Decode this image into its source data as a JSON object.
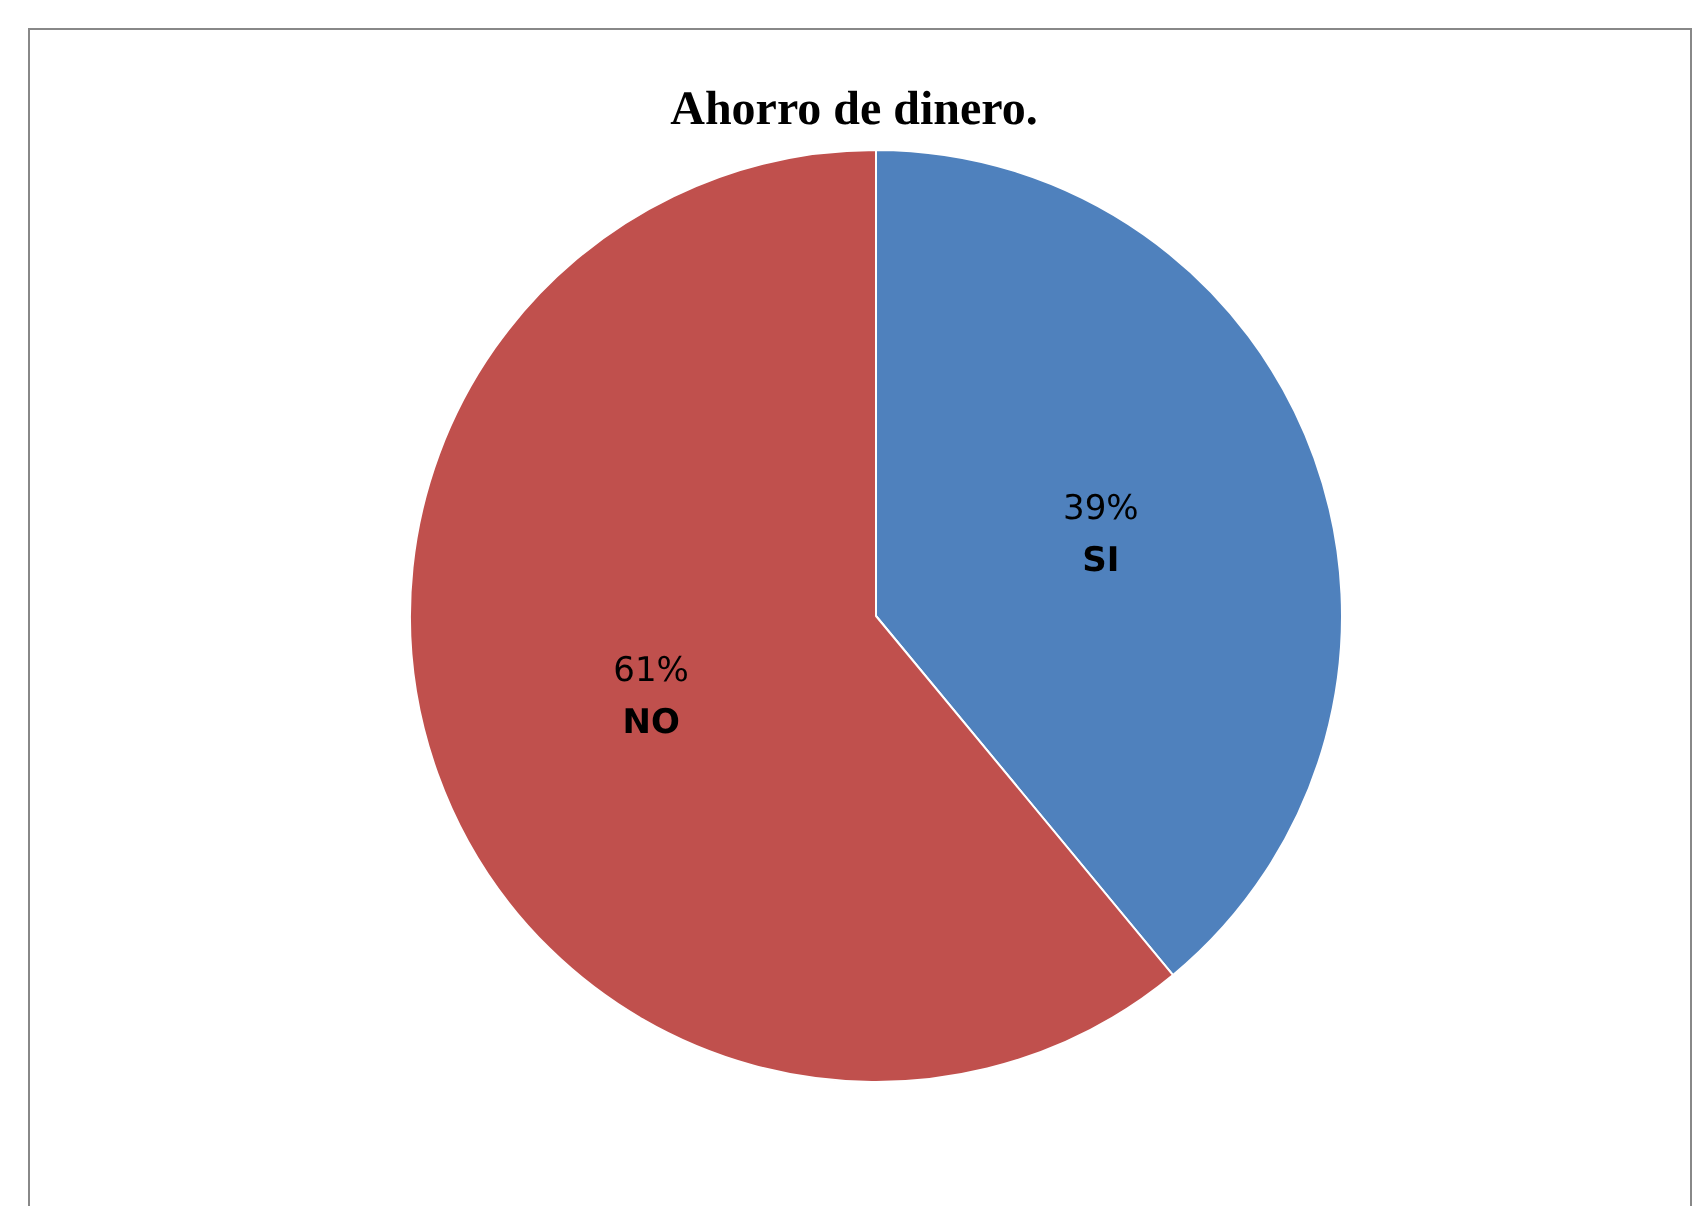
{
  "chart_data": {
    "type": "pie",
    "title": "Ahorro de dinero.",
    "categories": [
      "SI",
      "NO"
    ],
    "values": [
      39,
      61
    ],
    "colors": [
      "#4f81bd",
      "#c0504d"
    ],
    "value_labels": [
      "39%",
      "61%"
    ]
  }
}
